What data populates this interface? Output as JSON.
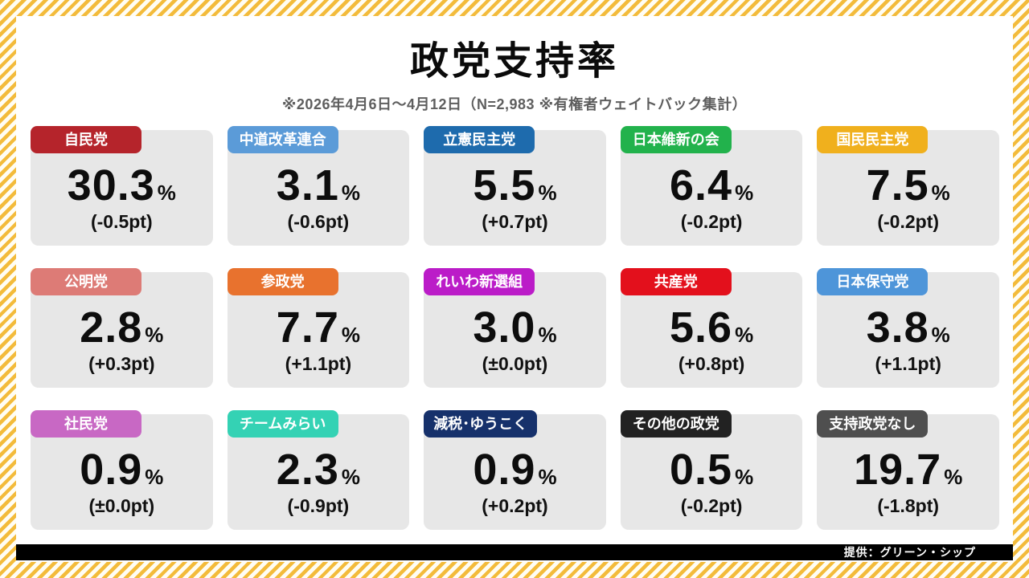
{
  "header": {
    "title": "政党支持率",
    "subtitle": "※2026年4月6日～4月12日（N=2,983 ※有権者ウェイトバック集計）"
  },
  "footer": {
    "credit": "提供：グリーン・シップ"
  },
  "theme": {
    "stripe_yellow": "#F3BB3B",
    "stripe_white": "#FFFDF4",
    "card_bg": "#E7E7E7",
    "bar_color": "#000000"
  },
  "cards": [
    {
      "party": "自民党",
      "color": "#B5242B",
      "value": "30.3",
      "unit": "%",
      "change": "(-0.5pt)"
    },
    {
      "party": "中道改革連合",
      "color": "#5B9BD8",
      "value": "3.1",
      "unit": "%",
      "change": "(-0.6pt)"
    },
    {
      "party": "立憲民主党",
      "color": "#1E6BAD",
      "value": "5.5",
      "unit": "%",
      "change": "(+0.7pt)"
    },
    {
      "party": "日本維新の会",
      "color": "#22B24C",
      "value": "6.4",
      "unit": "%",
      "change": "(-0.2pt)"
    },
    {
      "party": "国民民主党",
      "color": "#F0B01D",
      "value": "7.5",
      "unit": "%",
      "change": "(-0.2pt)"
    },
    {
      "party": "公明党",
      "color": "#DD7B76",
      "value": "2.8",
      "unit": "%",
      "change": "(+0.3pt)"
    },
    {
      "party": "参政党",
      "color": "#E8722E",
      "value": "7.7",
      "unit": "%",
      "change": "(+1.1pt)"
    },
    {
      "party": "れいわ新選組",
      "color": "#BB1CC8",
      "value": "3.0",
      "unit": "%",
      "change": "(±0.0pt)"
    },
    {
      "party": "共産党",
      "color": "#E3101C",
      "value": "5.6",
      "unit": "%",
      "change": "(+0.8pt)"
    },
    {
      "party": "日本保守党",
      "color": "#4E95D9",
      "value": "3.8",
      "unit": "%",
      "change": "(+1.1pt)"
    },
    {
      "party": "社民党",
      "color": "#C868C4",
      "value": "0.9",
      "unit": "%",
      "change": "(±0.0pt)"
    },
    {
      "party": "チームみらい",
      "color": "#34D2B4",
      "value": "2.3",
      "unit": "%",
      "change": "(-0.9pt)"
    },
    {
      "party": "減税･ゆうこく",
      "color": "#16316B",
      "value": "0.9",
      "unit": "%",
      "change": "(+0.2pt)"
    },
    {
      "party": "その他の政党",
      "color": "#222222",
      "value": "0.5",
      "unit": "%",
      "change": "(-0.2pt)"
    },
    {
      "party": "支持政党なし",
      "color": "#4F4F4F",
      "value": "19.7",
      "unit": "%",
      "change": "(-1.8pt)"
    }
  ],
  "chart_data": {
    "type": "table",
    "title": "政党支持率",
    "subtitle": "※2026年4月6日～4月12日（N=2,983 ※有権者ウェイトバック集計）",
    "unit": "%",
    "categories": [
      "自民党",
      "中道改革連合",
      "立憲民主党",
      "日本維新の会",
      "国民民主党",
      "公明党",
      "参政党",
      "れいわ新選組",
      "共産党",
      "日本保守党",
      "社民党",
      "チームみらい",
      "減税･ゆうこく",
      "その他の政党",
      "支持政党なし"
    ],
    "values": [
      30.3,
      3.1,
      5.5,
      6.4,
      7.5,
      2.8,
      7.7,
      3.0,
      5.6,
      3.8,
      0.9,
      2.3,
      0.9,
      0.5,
      19.7
    ],
    "change_pt": [
      -0.5,
      -0.6,
      0.7,
      -0.2,
      -0.2,
      0.3,
      1.1,
      0.0,
      0.8,
      1.1,
      0.0,
      -0.9,
      0.2,
      -0.2,
      -1.8
    ],
    "layout_hints": {
      "grid": "5x3",
      "sample_size": "N=2,983",
      "period": "2026年4月6日～4月12日"
    }
  }
}
